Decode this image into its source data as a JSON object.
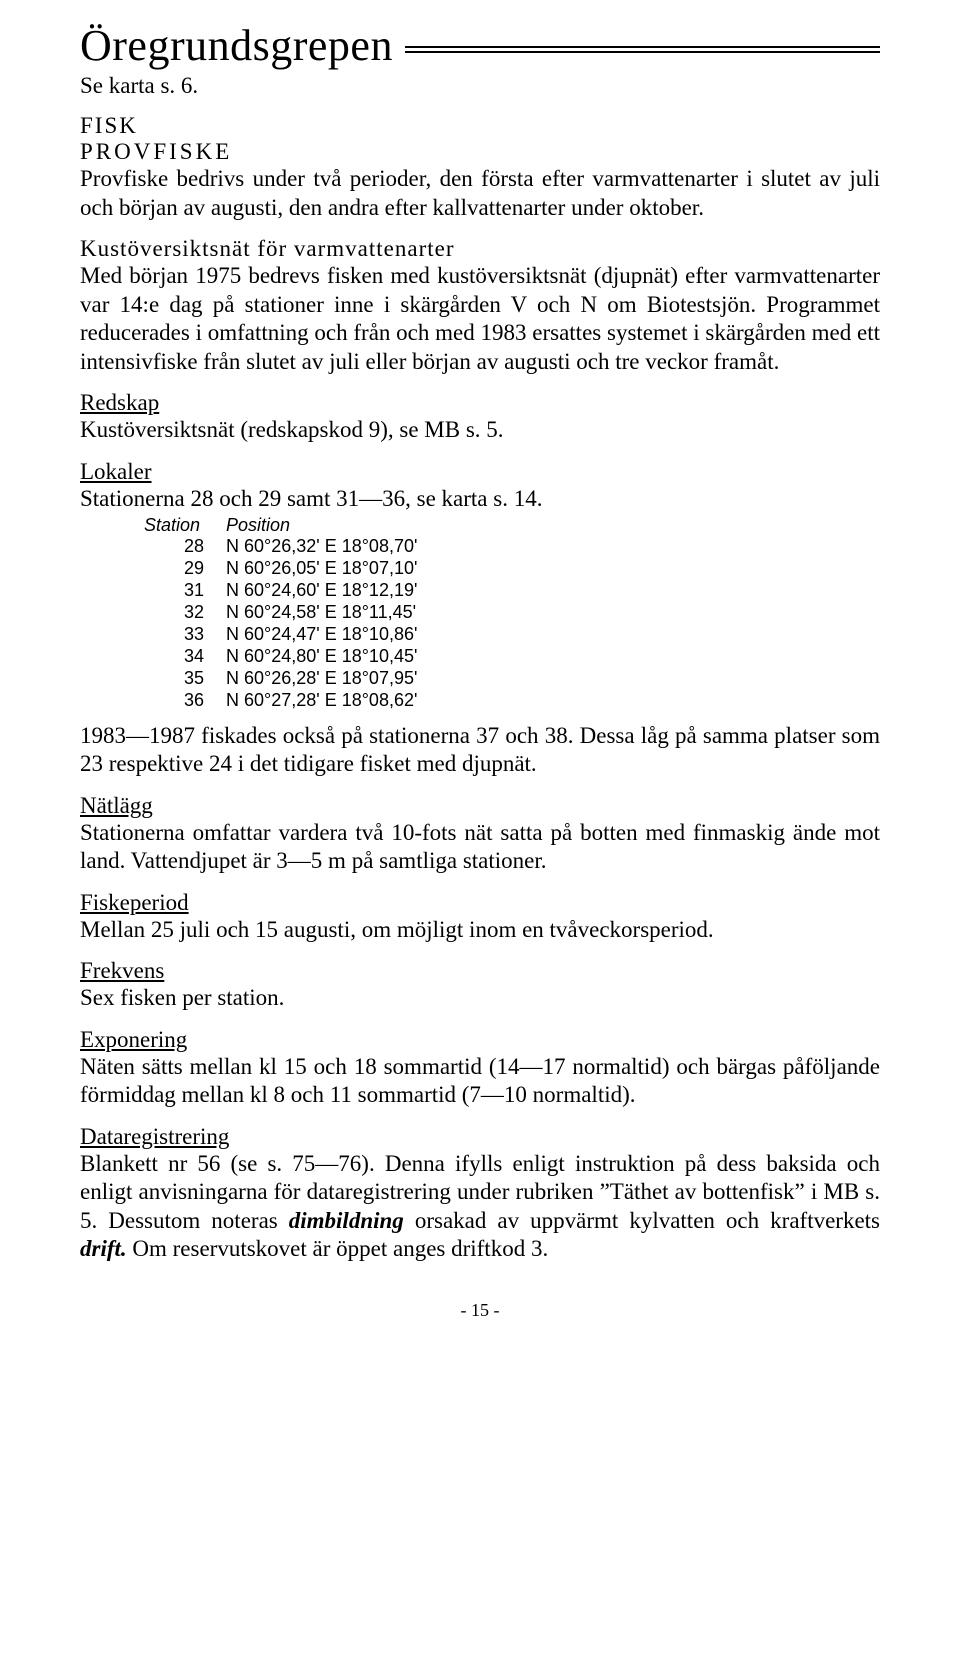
{
  "title": "Öregrundsgrepen",
  "subtitle": "Se karta s. 6.",
  "h_fisk": "FISK",
  "h_provfiske": "PROVFISKE",
  "p1": "Provfiske bedrivs under två perioder, den första efter varmvattenarter i slutet av juli och början av augusti, den andra efter kallvattenarter under oktober.",
  "h_kust": "Kustöversiktsnät för varmvattenarter",
  "p2": "Med början 1975 bedrevs fisken med kustöversiktsnät (djupnät) efter varmvattenarter var 14:e dag på stationer inne i skärgården V och N om Biotestsjön. Programmet reducerades i omfattning och från och med 1983 ersattes systemet i skärgården med ett intensivfiske från slutet av juli eller början av augusti och tre veckor framåt.",
  "h_redskap": "Redskap",
  "p_redskap": "Kustöversiktsnät (redskapskod 9), se MB s. 5.",
  "h_lokaler": "Lokaler",
  "p_lokaler": "Stationerna 28 och 29 samt 31—36, se karta s. 14.",
  "table": {
    "col1_head": "Station",
    "col2_head": "Position",
    "rows": [
      {
        "s": "28",
        "p": "N 60°26,32' E 18°08,70'"
      },
      {
        "s": "29",
        "p": "N 60°26,05' E 18°07,10'"
      },
      {
        "s": "31",
        "p": "N 60°24,60' E 18°12,19'"
      },
      {
        "s": "32",
        "p": "N 60°24,58' E 18°11,45'"
      },
      {
        "s": "33",
        "p": "N 60°24,47' E 18°10,86'"
      },
      {
        "s": "34",
        "p": "N 60°24,80' E 18°10,45'"
      },
      {
        "s": "35",
        "p": "N 60°26,28' E 18°07,95'"
      },
      {
        "s": "36",
        "p": "N 60°27,28' E 18°08,62'"
      }
    ]
  },
  "p_after_table": "1983—1987 fiskades också på stationerna 37 och 38. Dessa låg på samma platser som 23 respektive 24 i det tidigare fisket med djupnät.",
  "h_natlagg": "Nätlägg",
  "p_natlagg": "Stationerna omfattar vardera två 10-fots nät satta på botten med fin­maskig ände mot land. Vattendjupet är 3—5 m på samtliga stationer.",
  "h_fiskeperiod": "Fiskeperiod",
  "p_fiskeperiod": "Mellan 25 juli och 15 augusti, om möjligt inom en tvåveckorsperiod.",
  "h_frekvens": "Frekvens",
  "p_frekvens": "Sex fisken per station.",
  "h_exponering": "Exponering",
  "p_exponering": "Näten sätts mellan kl 15 och 18 sommartid (14—17 normaltid) och bärgas påföljande förmiddag mellan kl 8 och 11 sommartid (7—10 normaltid).",
  "h_datareg": "Dataregistrering",
  "p_datareg_a": "Blankett nr 56 (se s. 75—76). Denna ifylls enligt instruktion på dess baksida och enligt anvisningarna för dataregistrering under rubriken ”Täthet av bottenfisk” i MB s. 5. Dessutom noteras ",
  "p_datareg_em1": "dimbildning",
  "p_datareg_b": " orsakad av uppvärmt kylvatten och kraftverkets ",
  "p_datareg_em2": "drift.",
  "p_datareg_c": " Om reservutskovet är öppet anges driftkod 3.",
  "pagenum": "- 15 -"
}
